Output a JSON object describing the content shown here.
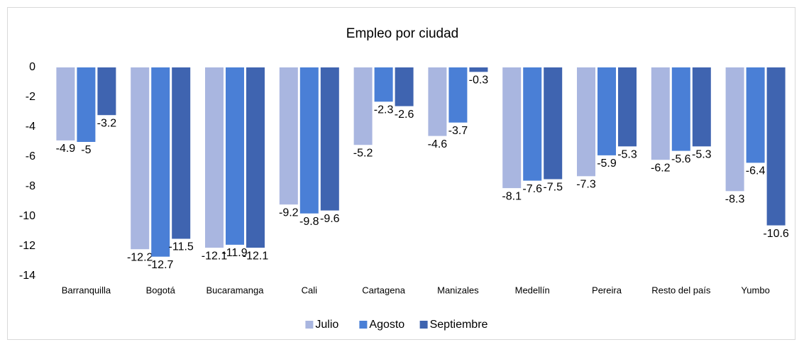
{
  "chart_data": {
    "type": "bar",
    "title": "Empleo por ciudad",
    "categories": [
      "Barranquilla",
      "Bogotá",
      "Bucaramanga",
      "Cali",
      "Cartagena",
      "Manizales",
      "Medellín",
      "Pereira",
      "Resto del país",
      "Yumbo"
    ],
    "series": [
      {
        "name": "Julio",
        "color": "#a9b6e0",
        "values": [
          -4.9,
          -12.2,
          -12.1,
          -9.2,
          -5.2,
          -4.6,
          -8.1,
          -7.3,
          -6.2,
          -8.3
        ]
      },
      {
        "name": "Agosto",
        "color": "#4a7fd6",
        "values": [
          -5,
          -12.7,
          -11.9,
          -9.8,
          -2.3,
          -3.7,
          -7.6,
          -5.9,
          -5.6,
          -6.4
        ]
      },
      {
        "name": "Septiembre",
        "color": "#3f64b0",
        "values": [
          -3.2,
          -11.5,
          -12.1,
          -9.6,
          -2.6,
          -0.3,
          -7.5,
          -5.3,
          -5.3,
          -10.6
        ]
      }
    ],
    "ylim": [
      -14,
      0
    ],
    "yticks": [
      0,
      -2,
      -4,
      -6,
      -8,
      -10,
      -12,
      -14
    ],
    "grid": false,
    "legend": "bottom"
  }
}
